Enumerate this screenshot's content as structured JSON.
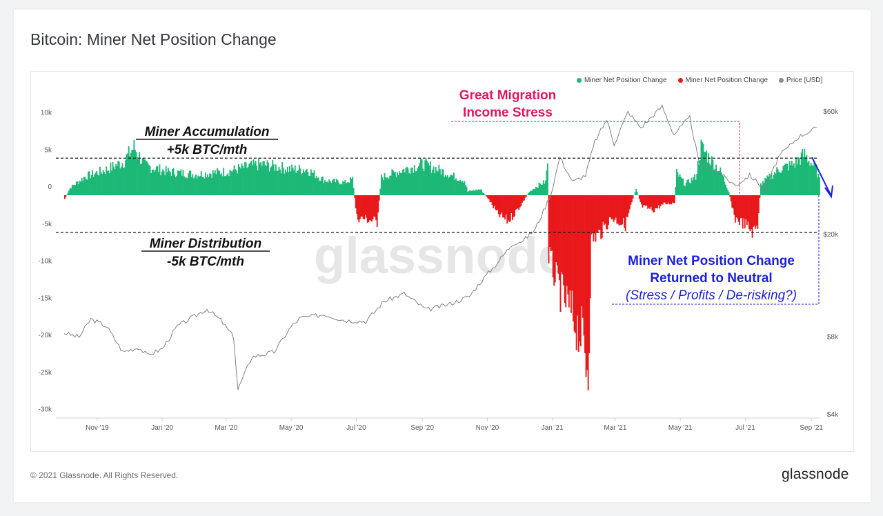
{
  "header": {
    "title": "Bitcoin: Miner Net Position Change"
  },
  "footer": {
    "copyright": "© 2021 Glassnode. All Rights Reserved.",
    "brand": "glassnode"
  },
  "watermark": "glassnode",
  "colors": {
    "positive": "#1db877",
    "negative": "#e8191b",
    "price": "#8c8c8c",
    "pink": "#e0185f",
    "blue": "#1a1fd9"
  },
  "annotations": {
    "accumulation": [
      "Miner Accumulation",
      "+5k BTC/mth"
    ],
    "distribution": [
      "Miner Distribution",
      "-5k BTC/mth"
    ],
    "migration": [
      "Great Migration",
      "Income Stress"
    ],
    "neutral": [
      "Miner Net Position Change",
      "Returned to Neutral",
      "(Stress / Profits / De-risking?)"
    ]
  },
  "chart_data": {
    "type": "bar",
    "legend": [
      {
        "label": "Miner Net Position Change",
        "color": "#1db877"
      },
      {
        "label": "Miner Net Position Change",
        "color": "#e8191b"
      },
      {
        "label": "Price [USD]",
        "color": "#8c8c8c"
      }
    ],
    "x_ticks": [
      "Nov '19",
      "Jan '20",
      "Mar '20",
      "May '20",
      "Jul '20",
      "Sep '20",
      "Nov '20",
      "Jan '21",
      "Mar '21",
      "May '21",
      "Jul '21",
      "Sep '21"
    ],
    "x_range": [
      "2019-10-01",
      "2021-09-08"
    ],
    "y_left": {
      "ticks": [
        "10k",
        "5k",
        "0",
        "-5k",
        "-10k",
        "-15k",
        "-20k",
        "-25k",
        "-30k"
      ],
      "range": [
        -30000,
        11000
      ]
    },
    "y_right": {
      "ticks": [
        "$60k",
        "$20k",
        "$8k",
        "$4k"
      ],
      "scale": "log",
      "range": [
        4000,
        68000
      ]
    },
    "reference_lines": [
      5000,
      -5000
    ],
    "net_position_keypoints": [
      [
        "2019-10-01",
        -500
      ],
      [
        "2019-10-06",
        1000
      ],
      [
        "2019-10-20",
        2500
      ],
      [
        "2019-11-10",
        3500
      ],
      [
        "2019-11-25",
        4500
      ],
      [
        "2019-12-05",
        6500
      ],
      [
        "2019-12-15",
        4000
      ],
      [
        "2020-01-05",
        3200
      ],
      [
        "2020-02-01",
        2800
      ],
      [
        "2020-03-01",
        3200
      ],
      [
        "2020-04-01",
        4200
      ],
      [
        "2020-05-01",
        3500
      ],
      [
        "2020-05-15",
        3500
      ],
      [
        "2020-06-01",
        2000
      ],
      [
        "2020-06-20",
        1700
      ],
      [
        "2020-06-27",
        2200
      ],
      [
        "2020-07-01",
        -3000
      ],
      [
        "2020-07-10",
        -3200
      ],
      [
        "2020-07-20",
        -3600
      ],
      [
        "2020-07-24",
        2400
      ],
      [
        "2020-08-15",
        3500
      ],
      [
        "2020-09-01",
        4200
      ],
      [
        "2020-09-15",
        3500
      ],
      [
        "2020-10-01",
        2500
      ],
      [
        "2020-10-10",
        2000
      ],
      [
        "2020-10-13",
        500
      ],
      [
        "2020-10-25",
        800
      ],
      [
        "2020-11-01",
        -400
      ],
      [
        "2020-11-10",
        -2500
      ],
      [
        "2020-11-20",
        -3500
      ],
      [
        "2020-12-01",
        -1500
      ],
      [
        "2020-12-10",
        500
      ],
      [
        "2020-12-20",
        1500
      ],
      [
        "2020-12-25",
        1800
      ],
      [
        "2020-12-27",
        4500
      ],
      [
        "2020-12-28",
        -8000
      ],
      [
        "2021-01-05",
        -12000
      ],
      [
        "2021-01-15",
        -15000
      ],
      [
        "2021-01-28",
        -19000
      ],
      [
        "2021-02-03",
        -23500
      ],
      [
        "2021-02-06",
        -6000
      ],
      [
        "2021-02-15",
        -5000
      ],
      [
        "2021-02-25",
        -3000
      ],
      [
        "2021-03-10",
        -4000
      ],
      [
        "2021-03-20",
        1000
      ],
      [
        "2021-03-25",
        -1500
      ],
      [
        "2021-04-05",
        -2000
      ],
      [
        "2021-04-15",
        -1200
      ],
      [
        "2021-04-25",
        -1000
      ],
      [
        "2021-04-27",
        3000
      ],
      [
        "2021-05-05",
        1500
      ],
      [
        "2021-05-15",
        2500
      ],
      [
        "2021-05-20",
        6500
      ],
      [
        "2021-05-28",
        5000
      ],
      [
        "2021-06-08",
        3000
      ],
      [
        "2021-06-15",
        500
      ],
      [
        "2021-06-20",
        -3000
      ],
      [
        "2021-07-01",
        -4000
      ],
      [
        "2021-07-08",
        -5000
      ],
      [
        "2021-07-12",
        -4000
      ],
      [
        "2021-07-15",
        1500
      ],
      [
        "2021-08-01",
        3500
      ],
      [
        "2021-08-15",
        4200
      ],
      [
        "2021-08-25",
        5500
      ],
      [
        "2021-09-05",
        3500
      ],
      [
        "2021-09-08",
        2000
      ]
    ],
    "price_keypoints": [
      [
        "2019-10-01",
        8300
      ],
      [
        "2019-10-15",
        8000
      ],
      [
        "2019-10-26",
        9400
      ],
      [
        "2019-11-10",
        8800
      ],
      [
        "2019-11-25",
        7000
      ],
      [
        "2019-12-10",
        7300
      ],
      [
        "2019-12-18",
        6800
      ],
      [
        "2020-01-01",
        7200
      ],
      [
        "2020-01-15",
        8800
      ],
      [
        "2020-02-12",
        10300
      ],
      [
        "2020-02-25",
        9300
      ],
      [
        "2020-03-08",
        8000
      ],
      [
        "2020-03-12",
        5000
      ],
      [
        "2020-03-25",
        6700
      ],
      [
        "2020-04-15",
        7000
      ],
      [
        "2020-05-01",
        8800
      ],
      [
        "2020-05-10",
        9500
      ],
      [
        "2020-06-01",
        9800
      ],
      [
        "2020-06-20",
        9300
      ],
      [
        "2020-07-10",
        9200
      ],
      [
        "2020-07-27",
        11000
      ],
      [
        "2020-08-15",
        11800
      ],
      [
        "2020-09-05",
        10200
      ],
      [
        "2020-09-25",
        10700
      ],
      [
        "2020-10-15",
        11500
      ],
      [
        "2020-10-25",
        13000
      ],
      [
        "2020-11-10",
        15500
      ],
      [
        "2020-11-25",
        18500
      ],
      [
        "2020-12-05",
        19000
      ],
      [
        "2020-12-16",
        21000
      ],
      [
        "2020-12-31",
        29000
      ],
      [
        "2021-01-08",
        40000
      ],
      [
        "2021-01-20",
        32000
      ],
      [
        "2021-02-01",
        34000
      ],
      [
        "2021-02-10",
        46000
      ],
      [
        "2021-02-21",
        56000
      ],
      [
        "2021-02-28",
        45000
      ],
      [
        "2021-03-13",
        60000
      ],
      [
        "2021-03-25",
        52000
      ],
      [
        "2021-04-14",
        63000
      ],
      [
        "2021-04-25",
        49000
      ],
      [
        "2021-05-10",
        57000
      ],
      [
        "2021-05-19",
        37000
      ],
      [
        "2021-06-01",
        36000
      ],
      [
        "2021-06-22",
        31000
      ],
      [
        "2021-07-05",
        34000
      ],
      [
        "2021-07-20",
        30000
      ],
      [
        "2021-08-01",
        40000
      ],
      [
        "2021-08-20",
        48000
      ],
      [
        "2021-09-06",
        52000
      ]
    ]
  }
}
